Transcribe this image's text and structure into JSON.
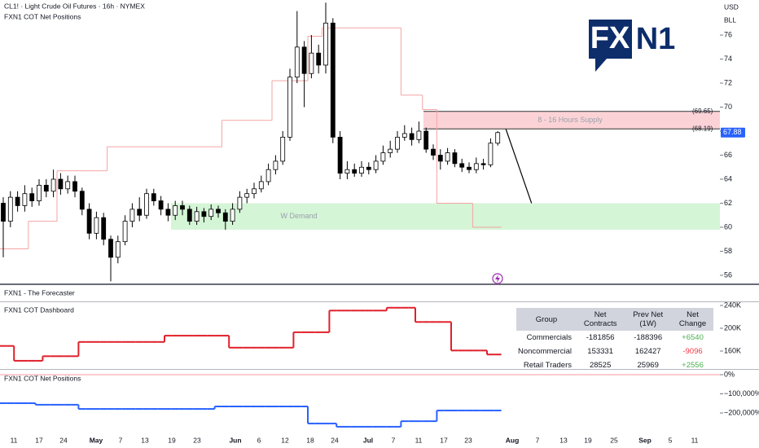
{
  "header": {
    "symbol": "CL1! · Light Crude Oil Futures · 16h · NYMEX",
    "indicator": "FXN1 COT Net Positions",
    "currency": "USD",
    "unit": "BLL"
  },
  "logo": {
    "left": "FX",
    "right": "N1"
  },
  "x_labels": [
    "11",
    "17",
    "24",
    "May",
    "7",
    "13",
    "19",
    "23",
    "Jun",
    "6",
    "12",
    "18",
    "24",
    "Jul",
    "7",
    "11",
    "17",
    "23",
    "Aug",
    "7",
    "13",
    "19",
    "25",
    "Sep",
    "5",
    "11"
  ],
  "chart_data": [
    {
      "type": "candlestick",
      "up_color": "#ffffff",
      "down_color": "#000000",
      "open": [
        62.0,
        60.5,
        62.5,
        61.8,
        62.8,
        62.2,
        63.5,
        63.0,
        64.0,
        63.2,
        63.8,
        63.0,
        61.5,
        59.5,
        60.8,
        59.0,
        57.5,
        58.8,
        60.5,
        61.5,
        61.0,
        62.8,
        62.2,
        61.5,
        61.0,
        61.8,
        61.5,
        60.5,
        61.3,
        60.9,
        61.5,
        61.2,
        60.5,
        61.5,
        62.5,
        62.8,
        63.2,
        63.8,
        64.8,
        65.5,
        67.5,
        72.5,
        75.0,
        72.8,
        74.5,
        73.5,
        77.0,
        67.5,
        64.5,
        64.8,
        64.5,
        65.0,
        64.8,
        65.5,
        66.2,
        66.5,
        67.5,
        67.8,
        67.3,
        68.0,
        66.5,
        66.0,
        65.5,
        66.2,
        65.3,
        65.0,
        64.8,
        65.3,
        65.2,
        67.0
      ],
      "high": [
        62.5,
        63.0,
        63.0,
        63.5,
        63.3,
        64.0,
        64.0,
        64.8,
        64.5,
        64.3,
        64.3,
        63.3,
        62.0,
        61.3,
        61.2,
        59.3,
        59.3,
        61.0,
        62.0,
        62.5,
        63.2,
        63.2,
        62.6,
        62.0,
        62.2,
        62.2,
        61.8,
        61.7,
        61.6,
        61.9,
        61.8,
        61.5,
        62.0,
        63.0,
        63.2,
        63.7,
        64.3,
        65.3,
        66.0,
        68.0,
        73.2,
        78.0,
        75.5,
        76.0,
        75.2,
        78.7,
        77.4,
        68.0,
        65.5,
        65.3,
        65.5,
        65.4,
        66.0,
        66.8,
        67.2,
        68.0,
        68.5,
        68.3,
        68.8,
        68.3,
        66.9,
        66.5,
        66.6,
        66.5,
        65.7,
        65.4,
        65.8,
        65.7,
        67.4,
        68.0
      ],
      "low": [
        57.5,
        60.0,
        61.3,
        61.3,
        61.7,
        61.8,
        62.5,
        62.5,
        62.7,
        62.8,
        62.5,
        61.0,
        59.0,
        59.0,
        58.5,
        55.5,
        57.0,
        58.5,
        60.0,
        60.5,
        60.7,
        61.8,
        61.0,
        60.5,
        60.6,
        61.0,
        60.2,
        60.2,
        60.4,
        60.6,
        60.8,
        59.8,
        60.2,
        61.2,
        62.0,
        62.4,
        62.9,
        63.5,
        64.4,
        65.2,
        67.2,
        72.0,
        70.0,
        72.4,
        72.8,
        72.8,
        67.0,
        64.0,
        64.0,
        64.2,
        64.2,
        64.4,
        64.5,
        65.2,
        65.8,
        66.2,
        67.2,
        66.8,
        67.0,
        66.2,
        65.6,
        64.8,
        65.2,
        65.0,
        64.6,
        64.5,
        64.5,
        64.8,
        65.0,
        66.8
      ],
      "close": [
        60.5,
        62.5,
        61.8,
        62.8,
        62.2,
        63.5,
        63.0,
        64.0,
        63.2,
        63.8,
        63.0,
        61.5,
        59.5,
        60.8,
        59.0,
        57.5,
        58.8,
        60.5,
        61.5,
        61.0,
        62.8,
        62.2,
        61.5,
        61.0,
        61.8,
        61.5,
        60.5,
        61.3,
        60.9,
        61.5,
        61.2,
        60.5,
        61.5,
        62.5,
        62.8,
        63.2,
        63.8,
        64.8,
        65.5,
        67.5,
        72.5,
        75.0,
        72.8,
        74.5,
        73.5,
        77.0,
        67.5,
        64.5,
        64.8,
        64.5,
        65.0,
        64.8,
        65.5,
        66.2,
        66.5,
        67.5,
        67.8,
        67.3,
        68.0,
        66.5,
        66.0,
        65.5,
        66.2,
        65.3,
        65.0,
        64.8,
        65.3,
        65.2,
        67.0,
        67.88
      ],
      "step_line": {
        "color": "#f4a3a3",
        "values": [
          58.2,
          58.2,
          58.2,
          58.2,
          60.5,
          60.5,
          60.5,
          60.5,
          64.7,
          64.7,
          64.7,
          64.7,
          64.7,
          64.7,
          64.7,
          66.7,
          66.7,
          66.7,
          66.7,
          66.7,
          66.7,
          66.7,
          66.7,
          66.7,
          66.7,
          66.7,
          66.7,
          66.7,
          66.7,
          66.7,
          66.7,
          68.9,
          68.9,
          68.9,
          68.9,
          68.9,
          68.9,
          68.9,
          72.2,
          72.2,
          72.2,
          72.2,
          72.2,
          75.9,
          75.9,
          76.6,
          76.6,
          76.6,
          76.6,
          76.6,
          76.6,
          76.6,
          76.6,
          76.6,
          76.6,
          76.6,
          71.0,
          71.0,
          71.0,
          69.8,
          69.8,
          62.0,
          62.0,
          62.0,
          62.0,
          62.0,
          60.0,
          60.0,
          60.0,
          60.0
        ]
      },
      "zones": [
        {
          "label": "8 - 16 Hours Supply",
          "top": {
            "value": 69.65,
            "label": "(69.65)"
          },
          "bottom": {
            "value": 68.19,
            "label": "(68.19)"
          },
          "color": "#fbd3d6"
        },
        {
          "label": "W Demand",
          "top": 62.0,
          "bottom": 59.8,
          "color": "#d4f5d6"
        }
      ],
      "price_tag_color": "#2962ff",
      "ylim": [
        55.32,
        78.92
      ],
      "yticks": [
        56,
        58,
        60,
        62,
        64,
        66,
        68,
        70,
        72,
        74,
        76
      ]
    },
    {
      "type": "pane",
      "title": "FXN1 - The Forecaster"
    },
    {
      "type": "step",
      "title": "FXN1 COT Dashboard",
      "color": "#e0202a",
      "values": [
        169000,
        169000,
        143000,
        143000,
        143000,
        143000,
        151000,
        151000,
        151000,
        151000,
        151000,
        176000,
        176000,
        176000,
        176000,
        176000,
        176000,
        176000,
        176000,
        176000,
        176000,
        176000,
        176000,
        187000,
        187000,
        187000,
        187000,
        187000,
        187000,
        187000,
        187000,
        187000,
        166000,
        166000,
        166000,
        166000,
        166000,
        166000,
        166000,
        166000,
        166000,
        193000,
        193000,
        193000,
        193000,
        193000,
        231000,
        231000,
        231000,
        231000,
        231000,
        231000,
        231000,
        231000,
        236000,
        236000,
        236000,
        236000,
        211000,
        211000,
        211000,
        211000,
        211000,
        161000,
        161000,
        161000,
        161000,
        161000,
        154000,
        154000
      ],
      "ylim": [
        128600,
        247100
      ],
      "yticks": [
        {
          "value": 240000,
          "label": "240K"
        },
        {
          "value": 200000,
          "label": "200K"
        },
        {
          "value": 160000,
          "label": "160K"
        }
      ]
    },
    {
      "type": "step",
      "title": "FXN1 COT Net Positions",
      "color": "#2962ff",
      "zero_line_color": "#f23645",
      "values": [
        -149000,
        -149000,
        -149000,
        -149000,
        -149000,
        -157000,
        -157000,
        -157000,
        -157000,
        -157000,
        -157000,
        -179000,
        -179000,
        -179000,
        -179000,
        -179000,
        -179000,
        -179000,
        -179000,
        -179000,
        -179000,
        -179000,
        -179000,
        -179000,
        -179000,
        -179000,
        -179000,
        -179000,
        -179000,
        -179000,
        -166000,
        -166000,
        -166000,
        -166000,
        -166000,
        -166000,
        -166000,
        -166000,
        -166000,
        -166000,
        -166000,
        -166000,
        -166000,
        -255000,
        -255000,
        -255000,
        -255000,
        -272000,
        -272000,
        -272000,
        -272000,
        -272000,
        -272000,
        -272000,
        -272000,
        -272000,
        -243000,
        -243000,
        -243000,
        -243000,
        -243000,
        -187000,
        -187000,
        -187000,
        -187000,
        -187000,
        -187000,
        -187000,
        -187000,
        -187000
      ],
      "ylim": [
        -297900,
        25500
      ],
      "yticks": [
        {
          "value": 0,
          "label": "0%"
        },
        {
          "value": -100000,
          "label": "−100,000%"
        },
        {
          "value": -200000,
          "label": "−200,000%"
        }
      ]
    }
  ],
  "table": {
    "header": [
      "Group",
      "Net Contracts",
      "Prev Net (1W)",
      "Net Change"
    ],
    "rows": [
      [
        "Commercials",
        -181856,
        -188396,
        "+6540"
      ],
      [
        "Noncommercial",
        153331,
        162427,
        "-9096"
      ],
      [
        "Retail Traders",
        28525,
        25969,
        "+2556"
      ]
    ]
  }
}
